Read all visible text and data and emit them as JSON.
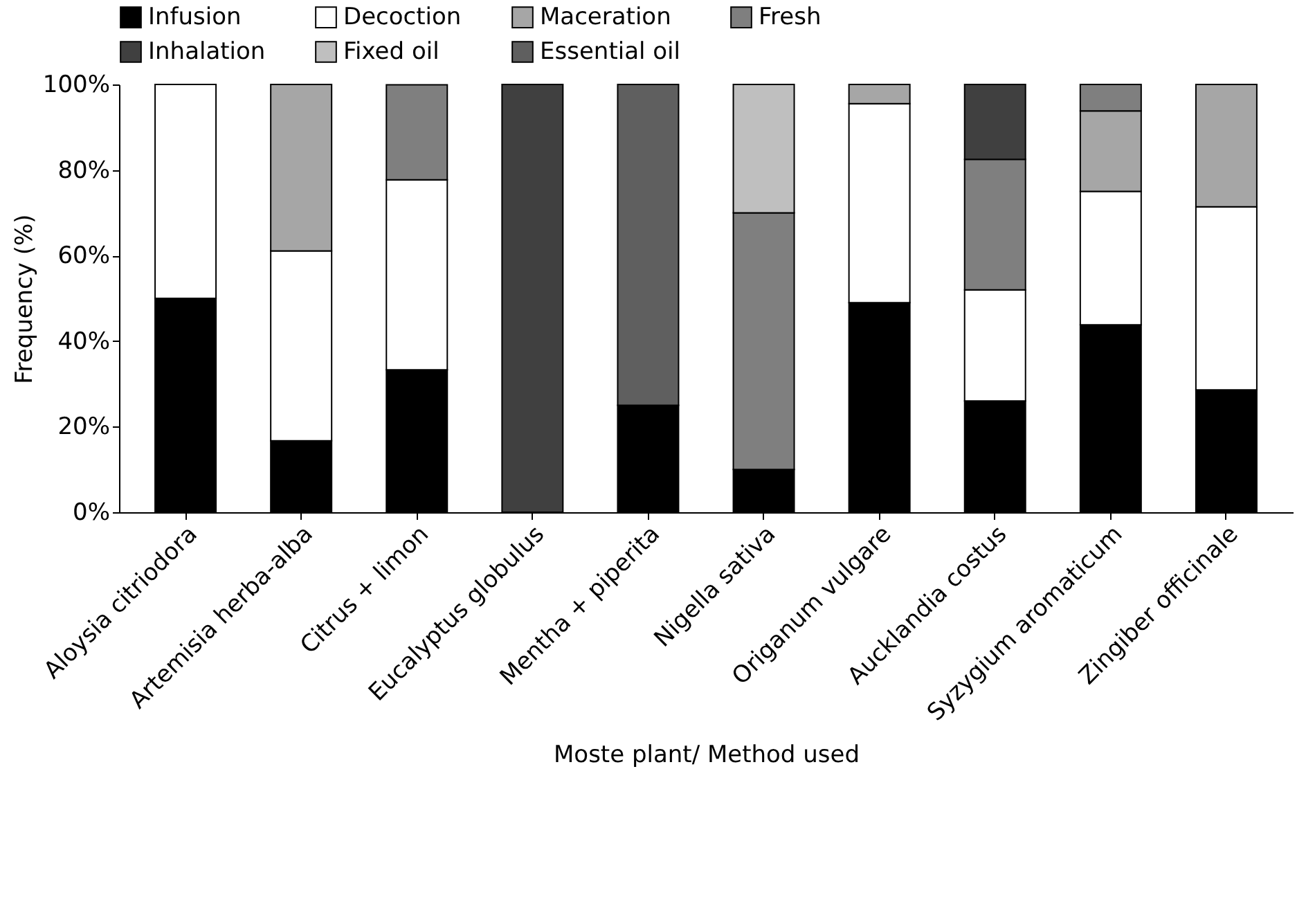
{
  "chart_data": {
    "type": "bar",
    "stacked": true,
    "xlabel": "Moste plant/  Method used",
    "ylabel": "Frequency (%)",
    "categories": [
      "Aloysia citriodora",
      "Artemisia herba-alba",
      "Citrus + limon",
      "Eucalyptus globulus",
      "Mentha + piperita",
      "Nigella sativa",
      "Origanum vulgare",
      "Aucklandia costus",
      "Syzygium aromaticum",
      "Zingiber officinale"
    ],
    "series": [
      {
        "name": "Infusion",
        "color": "#000000",
        "values": [
          50,
          16.7,
          33.3,
          null,
          25,
          10,
          49,
          26,
          43.8,
          28.6
        ]
      },
      {
        "name": "Decoction",
        "color": "#ffffff",
        "values": [
          50,
          44.4,
          44.4,
          null,
          null,
          null,
          46.5,
          26,
          31.2,
          42.8
        ]
      },
      {
        "name": "Maceration",
        "color": "#a6a6a6",
        "values": [
          null,
          38.9,
          null,
          null,
          null,
          null,
          4.5,
          null,
          18.8,
          28.6
        ]
      },
      {
        "name": "Fresh",
        "color": "#7f7f7f",
        "values": [
          null,
          null,
          22.2,
          null,
          null,
          60,
          null,
          30.5,
          6.2,
          null
        ]
      },
      {
        "name": "Inhalation",
        "color": "#404040",
        "values": [
          null,
          null,
          null,
          100,
          null,
          null,
          null,
          17.5,
          null,
          null
        ]
      },
      {
        "name": "Fixed oil",
        "color": "#bfbfbf",
        "values": [
          null,
          null,
          null,
          null,
          null,
          30,
          null,
          null,
          null,
          null
        ]
      },
      {
        "name": "Essential oil",
        "color": "#5f5f5f",
        "values": [
          null,
          null,
          null,
          null,
          75,
          null,
          null,
          null,
          null,
          null
        ]
      }
    ],
    "ylim": [
      0,
      100
    ],
    "yticks": [
      {
        "value": 0,
        "label": "0%"
      },
      {
        "value": 20,
        "label": "20%"
      },
      {
        "value": 40,
        "label": "40%"
      },
      {
        "value": 60,
        "label": "60%"
      },
      {
        "value": 80,
        "label": "80%"
      },
      {
        "value": 100,
        "label": "100%"
      }
    ],
    "grid": false,
    "legend": "top"
  }
}
